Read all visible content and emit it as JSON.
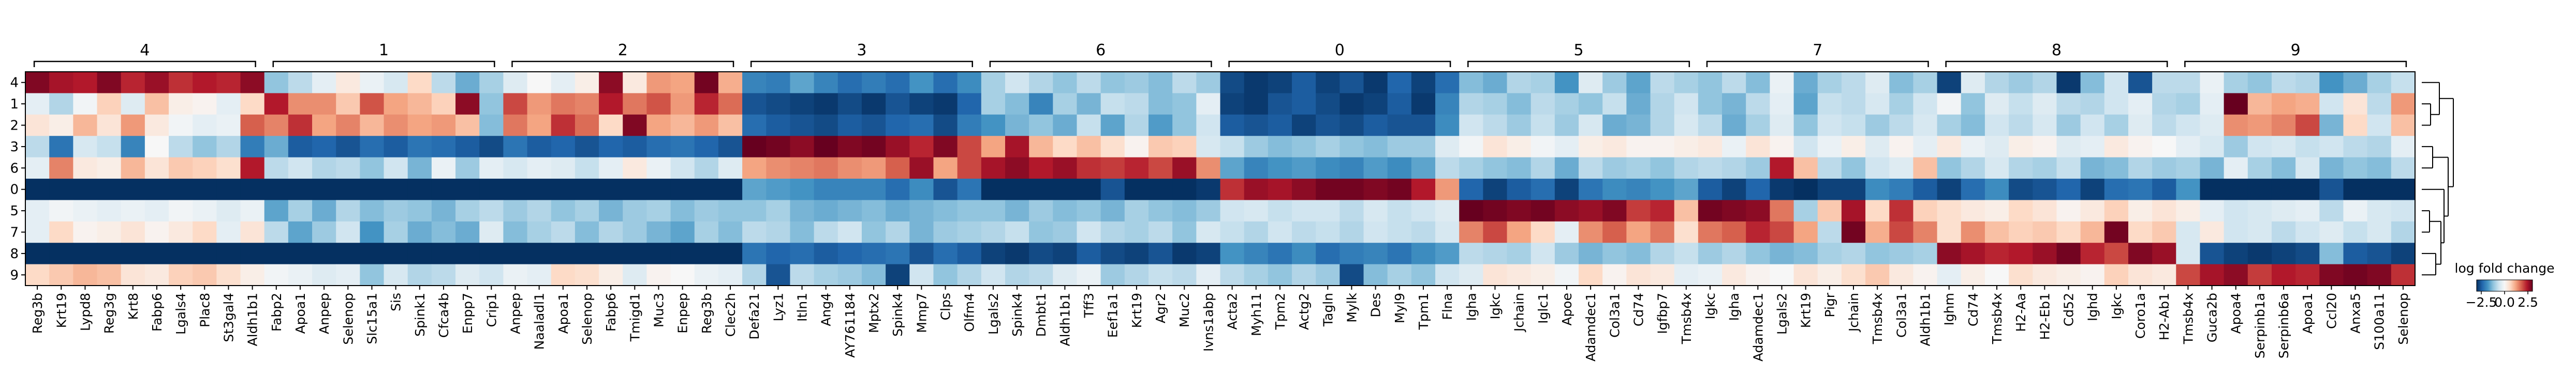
{
  "chart_data": {
    "type": "heatmap",
    "title": "",
    "xlabel": "",
    "ylabel": "",
    "row_labels": [
      "4",
      "1",
      "2",
      "3",
      "6",
      "0",
      "5",
      "7",
      "8",
      "9"
    ],
    "group_labels": [
      "4",
      "1",
      "2",
      "3",
      "6",
      "0",
      "5",
      "7",
      "8",
      "9"
    ],
    "groups": [
      {
        "label": "4",
        "genes": [
          "Reg3b",
          "Krt19",
          "Lypd8",
          "Reg3g",
          "Krt8",
          "Fabp6",
          "Lgals4",
          "Plac8",
          "St3gal4",
          "Aldh1b1"
        ]
      },
      {
        "label": "1",
        "genes": [
          "Fabp2",
          "Apoa1",
          "Anpep",
          "Selenop",
          "Slc15a1",
          "Sis",
          "Spink1",
          "Cfca4b",
          "Enpp7",
          "Crip1"
        ]
      },
      {
        "label": "2",
        "genes": [
          "Anpep",
          "Naaladl1",
          "Apoa1",
          "Selenop",
          "Fabp6",
          "Tmigd1",
          "Muc3",
          "Enpep",
          "Reg3b",
          "Clec2h"
        ]
      },
      {
        "label": "3",
        "genes": [
          "Defa21",
          "Lyz1",
          "Itln1",
          "Ang4",
          "AY761184",
          "Mptx2",
          "Spink4",
          "Mmp7",
          "Clps",
          "Olfm4"
        ]
      },
      {
        "label": "6",
        "genes": [
          "Lgals2",
          "Spink4",
          "Dmbt1",
          "Aldh1b1",
          "Tff3",
          "Eef1a1",
          "Krt19",
          "Agr2",
          "Muc2",
          "Ivns1abp"
        ]
      },
      {
        "label": "0",
        "genes": [
          "Acta2",
          "Myh11",
          "Tpm2",
          "Actg2",
          "Tagln",
          "Mylk",
          "Des",
          "Myl9",
          "Tpm1",
          "Flna"
        ]
      },
      {
        "label": "5",
        "genes": [
          "Igha",
          "Igkc",
          "Jchain",
          "Iglc1",
          "Apoe",
          "Adamdec1",
          "Col3a1",
          "Cd74",
          "Igfbp7",
          "Tmsb4x"
        ]
      },
      {
        "label": "7",
        "genes": [
          "Igkc",
          "Igha",
          "Adamdec1",
          "Lgals2",
          "Krt19",
          "Pigr",
          "Jchain",
          "Tmsb4x",
          "Col3a1",
          "Aldh1b1"
        ]
      },
      {
        "label": "8",
        "genes": [
          "Ighm",
          "Cd74",
          "Tmsb4x",
          "H2-Aa",
          "H2-Eb1",
          "Cd52",
          "Ighd",
          "Igkc",
          "Coro1a",
          "H2-Ab1"
        ]
      },
      {
        "label": "9",
        "genes": [
          "Tmsb4x",
          "Guca2b",
          "Apoa4",
          "Serpinb1a",
          "Serpinb6a",
          "Apoa1",
          "Ccl20",
          "Anxa5",
          "S100a11",
          "Selenop"
        ]
      }
    ],
    "values": [
      [
        2.8,
        2.5,
        2.4,
        2.8,
        2.3,
        2.6,
        2.2,
        2.4,
        2.3,
        2.7,
        -1.2,
        -0.8,
        -0.3,
        0.3,
        -0.2,
        -0.5,
        0.6,
        -0.8,
        -1.5,
        -1.0,
        -0.4,
        0.0,
        -0.3,
        0.2,
        2.7,
        0.3,
        1.3,
        1.2,
        2.9,
        1.1,
        -2.0,
        -2.1,
        -1.6,
        -2.0,
        -2.3,
        -2.1,
        -2.3,
        -1.8,
        -2.3,
        -1.9,
        -1.0,
        -0.6,
        -0.9,
        -1.2,
        -0.8,
        -1.2,
        -1.1,
        -1.3,
        -0.8,
        -1.1,
        -2.7,
        -2.9,
        -2.8,
        -2.5,
        -2.8,
        -2.6,
        -2.9,
        -2.4,
        -2.8,
        -2.3,
        -1.3,
        -1.5,
        -0.9,
        -1.0,
        -1.8,
        -0.4,
        -1.1,
        -1.6,
        -0.8,
        -1.0,
        -1.2,
        -0.8,
        -1.3,
        -0.2,
        -1.5,
        -1.0,
        -0.8,
        -0.4,
        -1.3,
        -1.0,
        -2.8,
        -0.4,
        -0.9,
        -1.1,
        -0.9,
        -2.9,
        -1.3,
        -0.6,
        -2.6,
        -0.8,
        -0.8,
        -0.2,
        -1.0,
        -1.2,
        -0.8,
        -0.9,
        -1.8,
        -1.5,
        -1.0,
        -0.7
      ],
      [
        -0.3,
        -0.9,
        -0.1,
        0.7,
        -0.4,
        0.9,
        0.2,
        0.1,
        -0.3,
        0.6,
        2.4,
        1.4,
        1.4,
        0.8,
        1.9,
        1.2,
        1.0,
        0.7,
        2.7,
        -1.2,
        2.0,
        1.3,
        1.6,
        1.5,
        2.4,
        1.6,
        1.9,
        1.3,
        2.3,
        1.7,
        -2.6,
        -2.7,
        -2.8,
        -2.9,
        -2.7,
        -2.9,
        -2.6,
        -2.8,
        -2.9,
        -2.4,
        -1.0,
        -1.3,
        -2.0,
        -1.0,
        -1.4,
        -0.7,
        -0.8,
        -1.3,
        -1.2,
        -0.3,
        -2.8,
        -2.9,
        -2.6,
        -2.5,
        -2.7,
        -2.9,
        -2.8,
        -2.5,
        -2.9,
        -2.0,
        -0.9,
        -1.0,
        -1.3,
        -0.8,
        -1.0,
        -1.2,
        -0.7,
        -1.5,
        -0.9,
        -0.6,
        -1.2,
        -1.4,
        -0.8,
        -0.3,
        -1.6,
        -0.7,
        -0.8,
        -0.5,
        -1.0,
        -0.6,
        -0.1,
        -1.2,
        -0.4,
        -0.7,
        -0.4,
        -0.8,
        -0.9,
        -0.6,
        -0.3,
        -0.9,
        -1.0,
        -0.3,
        3.0,
        1.0,
        1.2,
        1.1,
        -0.6,
        0.4,
        -0.8,
        1.3
      ],
      [
        0.4,
        0.2,
        1.0,
        0.4,
        1.3,
        0.3,
        -0.1,
        -0.3,
        -0.2,
        1.8,
        1.5,
        2.2,
        1.2,
        1.5,
        1.0,
        1.4,
        1.2,
        1.3,
        0.9,
        -1.3,
        1.6,
        1.2,
        2.2,
        1.7,
        0.6,
        2.8,
        1.2,
        1.0,
        1.3,
        0.9,
        -2.3,
        -2.5,
        -2.6,
        -2.7,
        -2.5,
        -2.6,
        -2.4,
        -2.3,
        -2.7,
        -2.1,
        -1.8,
        -1.4,
        -1.2,
        -1.5,
        -0.7,
        -1.6,
        -0.9,
        -1.7,
        -1.2,
        -0.6,
        -2.5,
        -2.6,
        -2.5,
        -2.8,
        -2.6,
        -2.7,
        -2.5,
        -2.6,
        -2.6,
        -1.9,
        -0.6,
        -0.8,
        -1.1,
        -0.7,
        -1.1,
        -0.5,
        -1.5,
        -1.4,
        -0.9,
        -0.5,
        -0.8,
        -1.5,
        -1.0,
        -0.4,
        -1.2,
        -0.6,
        -0.7,
        -1.1,
        -0.8,
        -0.5,
        -1.0,
        -1.3,
        -0.6,
        -0.8,
        -0.5,
        -1.1,
        -0.6,
        -1.0,
        -0.4,
        -0.8,
        -0.6,
        -0.4,
        1.4,
        1.3,
        1.5,
        2.0,
        -1.4,
        0.6,
        -0.6,
        0.9
      ],
      [
        -0.8,
        -2.2,
        -0.5,
        -0.7,
        -2.0,
        0.0,
        -0.8,
        -1.2,
        -0.9,
        -2.1,
        -1.5,
        -2.5,
        -2.4,
        -2.6,
        -2.3,
        -2.5,
        -2.2,
        -2.3,
        -2.5,
        -2.7,
        -2.2,
        -2.5,
        -2.4,
        -2.6,
        -2.4,
        -2.5,
        -2.3,
        -2.2,
        -2.4,
        -2.6,
        3.0,
        2.9,
        2.7,
        3.0,
        2.8,
        2.9,
        2.6,
        2.3,
        2.8,
        2.0,
        1.2,
        2.5,
        1.0,
        0.6,
        0.9,
        0.5,
        0.1,
        0.8,
        0.7,
        -0.5,
        -0.7,
        -1.1,
        -1.3,
        -1.2,
        -1.0,
        -1.2,
        -1.3,
        -1.1,
        -1.1,
        -0.4,
        -0.1,
        0.4,
        0.2,
        -0.1,
        -0.3,
        0.2,
        0.3,
        0.1,
        0.1,
        0.2,
        0.3,
        -0.2,
        0.4,
        0.1,
        -0.6,
        -0.2,
        0.2,
        -0.4,
        0.1,
        -0.3,
        0.3,
        -0.2,
        -0.4,
        0.2,
        0.1,
        -0.4,
        -0.3,
        0.3,
        0.1,
        0.0,
        -0.3,
        -0.5,
        -1.1,
        -0.6,
        -0.5,
        -0.7,
        -0.6,
        -0.8,
        -0.9,
        -0.3
      ],
      [
        -0.3,
        1.5,
        0.3,
        0.2,
        1.0,
        0.4,
        0.8,
        0.7,
        0.5,
        2.4,
        -0.8,
        -0.6,
        -0.9,
        -0.8,
        -1.2,
        -0.6,
        -1.4,
        -0.2,
        -1.1,
        -0.3,
        -0.5,
        -0.3,
        -0.4,
        -0.7,
        -0.3,
        0.3,
        -0.2,
        -0.6,
        -0.9,
        -0.4,
        1.2,
        1.4,
        1.5,
        1.6,
        1.4,
        1.3,
        1.8,
        2.6,
        1.2,
        2.0,
        2.5,
        2.7,
        2.4,
        2.6,
        2.2,
        2.1,
        2.3,
        2.0,
        2.6,
        1.4,
        -1.6,
        -2.0,
        -1.8,
        -1.7,
        -1.9,
        -2.0,
        -1.7,
        -1.9,
        -1.6,
        -0.8,
        -1.0,
        -1.2,
        -1.3,
        -0.9,
        -1.5,
        -0.8,
        -1.1,
        -1.0,
        -1.2,
        -0.9,
        -0.8,
        -0.9,
        -1.1,
        2.4,
        0.9,
        -0.8,
        -1.2,
        -0.6,
        -0.4,
        0.9,
        -1.2,
        -0.9,
        -0.5,
        -0.9,
        -1.0,
        -0.7,
        -1.4,
        -1.3,
        -0.9,
        -1.1,
        -1.0,
        -1.4,
        -0.3,
        -1.0,
        -1.3,
        -0.5,
        -1.4,
        -1.2,
        -1.3,
        -0.8
      ],
      [
        -3.0,
        -3.0,
        -3.0,
        -3.0,
        -3.0,
        -3.0,
        -3.0,
        -3.0,
        -3.0,
        -3.0,
        -3.0,
        -3.0,
        -3.0,
        -3.0,
        -3.0,
        -3.0,
        -3.0,
        -3.0,
        -3.0,
        -3.0,
        -3.0,
        -3.0,
        -3.0,
        -3.0,
        -3.0,
        -3.0,
        -3.0,
        -3.0,
        -3.0,
        -3.0,
        -1.6,
        -1.7,
        -1.8,
        -2.0,
        -2.0,
        -2.0,
        -2.3,
        -1.9,
        -2.6,
        -2.2,
        -3.0,
        -3.0,
        -3.0,
        -3.0,
        -3.0,
        -2.6,
        -3.0,
        -3.0,
        -3.0,
        -2.9,
        2.2,
        2.6,
        2.5,
        2.7,
        2.9,
        2.9,
        2.8,
        2.9,
        2.4,
        1.3,
        -2.4,
        -2.8,
        -2.5,
        -2.3,
        -2.8,
        -2.2,
        -1.9,
        -2.0,
        -1.8,
        -1.6,
        -2.5,
        -2.8,
        -2.4,
        -2.9,
        -3.0,
        -2.8,
        -2.8,
        -1.9,
        -2.1,
        -2.5,
        -2.8,
        -2.3,
        -1.9,
        -2.7,
        -2.6,
        -2.4,
        -2.8,
        -2.3,
        -2.2,
        -2.5,
        -1.8,
        -3.0,
        -3.0,
        -3.0,
        -3.0,
        -3.0,
        -2.6,
        -3.0,
        -3.0,
        -3.0
      ],
      [
        -0.3,
        -0.1,
        -0.2,
        -0.3,
        -0.2,
        -0.3,
        -0.1,
        -0.2,
        -0.4,
        -0.2,
        -1.6,
        -1.0,
        -1.5,
        -0.9,
        -1.3,
        -1.1,
        -1.2,
        -1.4,
        -1.0,
        -0.8,
        -1.1,
        -0.9,
        -1.2,
        -1.0,
        -1.4,
        -1.1,
        -1.0,
        -1.3,
        -1.1,
        -1.2,
        -1.2,
        -1.0,
        -1.4,
        -1.5,
        -1.4,
        -1.3,
        -1.5,
        -1.4,
        -1.3,
        -1.2,
        -1.2,
        -1.4,
        -1.1,
        -1.3,
        -1.2,
        -1.4,
        -1.0,
        -1.2,
        -1.3,
        -1.1,
        -0.6,
        -0.5,
        -0.7,
        -0.6,
        -0.6,
        -0.8,
        -0.5,
        -0.7,
        -0.6,
        -0.4,
        3.0,
        2.9,
        2.8,
        2.9,
        2.7,
        2.6,
        2.8,
        2.1,
        2.3,
        0.9,
        2.9,
        2.8,
        2.7,
        1.6,
        -1.0,
        0.8,
        2.5,
        0.6,
        2.2,
        0.7,
        0.5,
        0.3,
        0.2,
        0.6,
        0.4,
        0.1,
        0.3,
        0.7,
        0.2,
        0.4,
        0.2,
        -0.3,
        -0.6,
        -0.5,
        -0.4,
        -0.3,
        -0.8,
        -0.2,
        -0.5,
        -0.6
      ],
      [
        -0.3,
        0.6,
        0.1,
        0.2,
        0.4,
        0.1,
        0.3,
        0.6,
        -0.3,
        0.4,
        -0.8,
        -1.6,
        -1.1,
        -0.6,
        -1.8,
        -1.0,
        -1.5,
        -1.3,
        -1.5,
        -0.4,
        -1.3,
        -1.0,
        -0.8,
        -1.3,
        -0.9,
        -1.1,
        -1.4,
        -1.6,
        -1.0,
        -1.3,
        -0.8,
        -0.9,
        -1.3,
        -0.8,
        -0.6,
        -1.2,
        -0.9,
        -1.4,
        -1.1,
        -1.0,
        -0.9,
        -0.7,
        -1.2,
        -1.1,
        -0.6,
        -0.9,
        -1.0,
        -0.8,
        -1.2,
        -0.5,
        -0.7,
        -0.9,
        -0.6,
        -0.8,
        -0.7,
        -0.9,
        -0.6,
        -0.7,
        -0.8,
        -0.5,
        1.5,
        2.0,
        1.2,
        0.6,
        -0.3,
        1.4,
        1.8,
        1.2,
        1.6,
        0.5,
        1.6,
        1.8,
        2.3,
        2.0,
        1.2,
        -0.8,
        2.9,
        1.1,
        2.0,
        1.5,
        0.5,
        1.4,
        0.9,
        0.7,
        0.8,
        0.6,
        1.0,
        2.9,
        0.6,
        0.8,
        -0.5,
        0.3,
        -0.6,
        -0.5,
        -0.8,
        -0.6,
        -0.4,
        -0.7,
        -0.5,
        -0.9
      ],
      [
        -3.0,
        -3.0,
        -3.0,
        -3.0,
        -3.0,
        -3.0,
        -3.0,
        -3.0,
        -3.0,
        -3.0,
        -3.0,
        -3.0,
        -3.0,
        -3.0,
        -3.0,
        -3.0,
        -3.0,
        -3.0,
        -3.0,
        -3.0,
        -3.0,
        -3.0,
        -3.0,
        -3.0,
        -3.0,
        -3.0,
        -3.0,
        -3.0,
        -3.0,
        -3.0,
        -2.2,
        -2.4,
        -2.3,
        -2.5,
        -2.4,
        -2.3,
        -2.2,
        -2.6,
        -2.3,
        -2.5,
        -2.8,
        -2.9,
        -2.7,
        -2.8,
        -2.5,
        -2.7,
        -2.8,
        -2.6,
        -2.9,
        -2.8,
        -1.8,
        -2.0,
        -2.2,
        -1.9,
        -2.3,
        -2.1,
        -2.0,
        -2.2,
        -1.9,
        -1.7,
        -0.8,
        -0.9,
        -1.0,
        -0.6,
        -1.1,
        -1.4,
        -1.2,
        -1.3,
        -0.9,
        -0.7,
        -1.1,
        -0.9,
        -1.2,
        -1.4,
        -1.3,
        -1.0,
        -0.9,
        -1.2,
        -1.1,
        -1.0,
        2.7,
        2.5,
        2.3,
        2.4,
        2.6,
        2.9,
        2.3,
        2.0,
        2.8,
        2.6,
        -0.5,
        -2.6,
        -2.8,
        -2.9,
        -2.8,
        -2.7,
        -1.3,
        -2.5,
        -2.6,
        -2.8
      ],
      [
        0.6,
        0.8,
        1.0,
        0.9,
        0.4,
        0.3,
        0.7,
        0.8,
        0.5,
        0.2,
        -0.1,
        -0.2,
        -0.4,
        -0.3,
        -1.2,
        -0.5,
        -0.9,
        -0.8,
        -0.4,
        -0.6,
        -0.2,
        -0.3,
        0.6,
        0.5,
        0.2,
        -0.4,
        0.1,
        0.0,
        -0.2,
        -0.3,
        -0.9,
        -2.6,
        -0.8,
        -1.0,
        -1.1,
        -1.3,
        -2.8,
        -0.6,
        -1.2,
        -0.9,
        -0.6,
        -0.9,
        -0.8,
        -0.4,
        -0.2,
        -1.1,
        -0.9,
        -0.7,
        -0.8,
        -0.3,
        -0.8,
        -1.0,
        -1.2,
        -0.9,
        -1.1,
        -2.7,
        -1.3,
        -1.0,
        -1.2,
        -0.6,
        -0.4,
        0.4,
        0.3,
        0.2,
        -0.1,
        0.6,
        0.1,
        0.4,
        0.3,
        -0.3,
        -0.2,
        0.3,
        0.1,
        0.0,
        0.4,
        0.2,
        0.5,
        0.8,
        0.3,
        0.1,
        -0.3,
        0.2,
        0.0,
        0.5,
        0.3,
        0.2,
        0.1,
        0.7,
        0.4,
        0.3,
        2.0,
        2.5,
        2.7,
        2.1,
        2.4,
        2.3,
        2.8,
        2.9,
        2.8,
        2.2
      ]
    ],
    "color_scale": {
      "name": "RdBu_r",
      "vmin": -3,
      "vmax": 3,
      "low": "#053061",
      "mid": "#f7f7f7",
      "high": "#67001f"
    },
    "colorbar": {
      "label": "log fold change",
      "ticks": [
        "−2.5",
        "0.0",
        "2.5"
      ],
      "tick_values": [
        -2.5,
        0.0,
        2.5
      ]
    },
    "dendrogram": "right",
    "grid": false
  }
}
